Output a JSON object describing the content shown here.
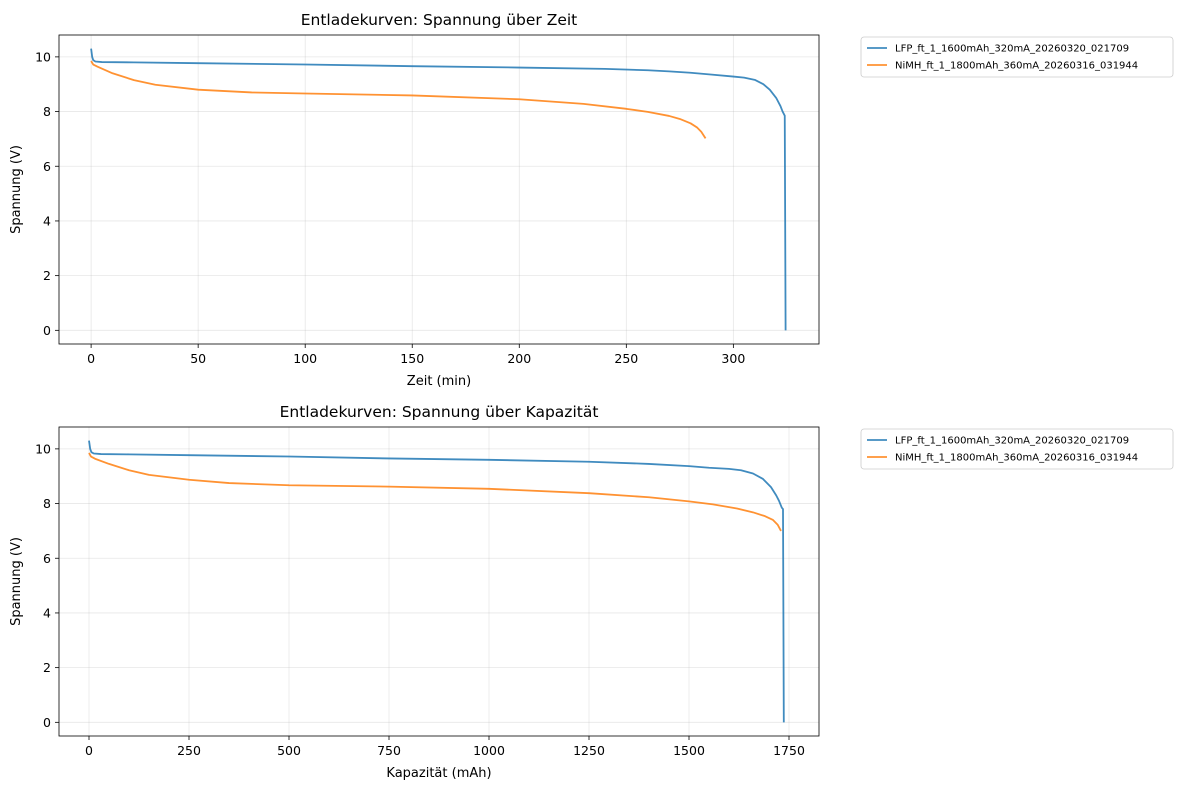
{
  "chart_data": [
    {
      "type": "line",
      "title": "Entladekurven: Spannung über Zeit",
      "xlabel": "Zeit (min)",
      "ylabel": "Spannung (V)",
      "xlim": [
        -15,
        340
      ],
      "ylim": [
        -0.5,
        10.8
      ],
      "xticks": [
        0,
        50,
        100,
        150,
        200,
        250,
        300
      ],
      "yticks": [
        0,
        2,
        4,
        6,
        8,
        10
      ],
      "grid": true,
      "legend_position": "outside-top-right",
      "series": [
        {
          "name": "LFP_ft_1_1600mAh_320mA_20260320_021709",
          "color": "#1f77b4",
          "x": [
            0,
            0.5,
            1,
            2,
            5,
            20,
            50,
            100,
            150,
            200,
            240,
            260,
            270,
            280,
            290,
            300,
            305,
            310,
            314,
            317,
            320,
            322,
            323,
            324,
            324.2,
            324.4
          ],
          "y": [
            10.3,
            10.0,
            9.88,
            9.83,
            9.81,
            9.8,
            9.77,
            9.72,
            9.66,
            9.61,
            9.56,
            9.51,
            9.47,
            9.42,
            9.35,
            9.28,
            9.24,
            9.16,
            9.0,
            8.8,
            8.5,
            8.2,
            8.0,
            7.85,
            4.0,
            0.0
          ]
        },
        {
          "name": "NiMH_ft_1_1800mAh_360mA_20260316_031944",
          "color": "#ff7f0e",
          "x": [
            0,
            1,
            3,
            10,
            20,
            30,
            50,
            75,
            100,
            150,
            200,
            230,
            250,
            260,
            270,
            275,
            280,
            283,
            285,
            287
          ],
          "y": [
            9.85,
            9.72,
            9.64,
            9.4,
            9.15,
            8.98,
            8.8,
            8.7,
            8.66,
            8.59,
            8.45,
            8.28,
            8.1,
            7.99,
            7.84,
            7.73,
            7.57,
            7.42,
            7.26,
            7.02
          ]
        }
      ]
    },
    {
      "type": "line",
      "title": "Entladekurven: Spannung über Kapazität",
      "xlabel": "Kapazität (mAh)",
      "ylabel": "Spannung (V)",
      "xlim": [
        -75,
        1825
      ],
      "ylim": [
        -0.5,
        10.8
      ],
      "xticks": [
        0,
        250,
        500,
        750,
        1000,
        1250,
        1500,
        1750
      ],
      "yticks": [
        0,
        2,
        4,
        6,
        8,
        10
      ],
      "grid": true,
      "legend_position": "outside-top-right",
      "series": [
        {
          "name": "LFP_ft_1_1600mAh_320mA_20260320_021709",
          "color": "#1f77b4",
          "x": [
            0,
            3,
            6,
            12,
            30,
            100,
            250,
            500,
            750,
            1000,
            1250,
            1400,
            1500,
            1550,
            1600,
            1630,
            1660,
            1685,
            1705,
            1718,
            1725,
            1732,
            1735,
            1736,
            1737
          ],
          "y": [
            10.3,
            10.0,
            9.88,
            9.83,
            9.81,
            9.8,
            9.77,
            9.72,
            9.65,
            9.6,
            9.53,
            9.45,
            9.37,
            9.31,
            9.27,
            9.22,
            9.1,
            8.9,
            8.6,
            8.3,
            8.1,
            7.85,
            7.8,
            4.0,
            0.0
          ]
        },
        {
          "name": "NiMH_ft_1_1800mAh_360mA_20260316_031944",
          "color": "#ff7f0e",
          "x": [
            0,
            5,
            15,
            50,
            100,
            150,
            250,
            350,
            500,
            750,
            1000,
            1250,
            1400,
            1500,
            1560,
            1620,
            1660,
            1690,
            1710,
            1722,
            1730
          ],
          "y": [
            9.85,
            9.72,
            9.64,
            9.45,
            9.22,
            9.05,
            8.87,
            8.75,
            8.67,
            8.62,
            8.54,
            8.38,
            8.23,
            8.08,
            7.97,
            7.82,
            7.68,
            7.54,
            7.4,
            7.22,
            7.0
          ]
        }
      ]
    }
  ]
}
